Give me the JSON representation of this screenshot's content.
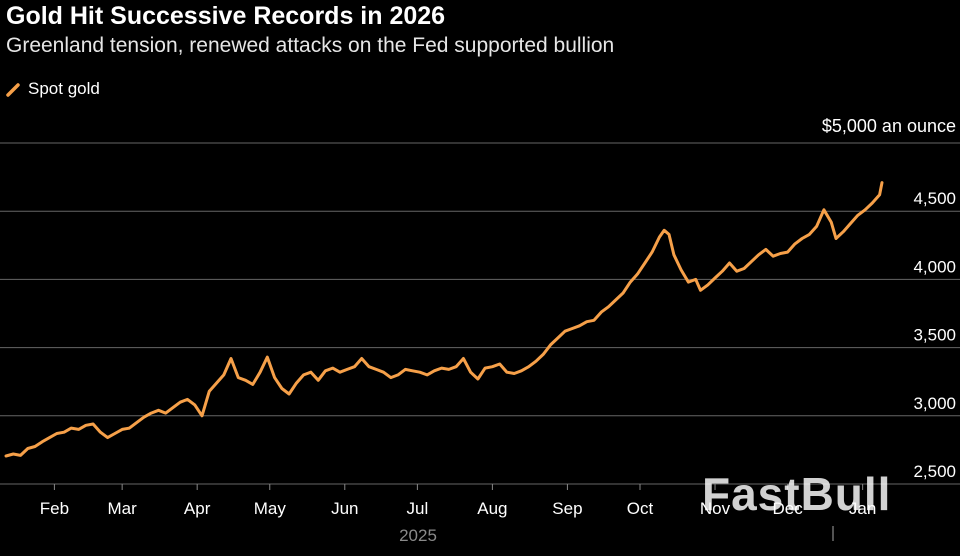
{
  "header": {
    "title": "Gold Hit Successive Records in 2026",
    "subtitle": "Greenland tension, renewed attacks on the Fed supported bullion"
  },
  "legend": {
    "label": "Spot gold"
  },
  "watermark": "FastBull",
  "colors": {
    "series": "#f6a049",
    "grid": "#666666",
    "background": "#000000",
    "text": "#ffffff"
  },
  "chart_data": {
    "type": "line",
    "title": "Gold Hit Successive Records in 2026",
    "subtitle": "Greenland tension, renewed attacks on the Fed supported bullion",
    "ylabel": "$5,000 an ounce",
    "xlabel": "",
    "year_label": "2025",
    "ylim": [
      2500,
      5000
    ],
    "yticks": [
      2500,
      3000,
      3500,
      4000,
      4500
    ],
    "ytick_labels": [
      "2,500",
      "3,000",
      "3,500",
      "4,000",
      "4,500"
    ],
    "xlim": [
      0,
      362
    ],
    "x_ticks": [
      {
        "label": "Feb",
        "x": 20
      },
      {
        "label": "Mar",
        "x": 48
      },
      {
        "label": "Apr",
        "x": 79
      },
      {
        "label": "May",
        "x": 109
      },
      {
        "label": "Jun",
        "x": 140
      },
      {
        "label": "Jul",
        "x": 170
      },
      {
        "label": "Aug",
        "x": 201
      },
      {
        "label": "Sep",
        "x": 232
      },
      {
        "label": "Oct",
        "x": 262
      },
      {
        "label": "Nov",
        "x": 293
      },
      {
        "label": "Dec",
        "x": 323
      },
      {
        "label": "Jan",
        "x": 354
      }
    ],
    "legend_position": "top-left",
    "series": [
      {
        "name": "Spot gold",
        "points": [
          [
            0,
            2705
          ],
          [
            3,
            2720
          ],
          [
            6,
            2710
          ],
          [
            9,
            2760
          ],
          [
            12,
            2775
          ],
          [
            15,
            2810
          ],
          [
            18,
            2840
          ],
          [
            21,
            2870
          ],
          [
            24,
            2880
          ],
          [
            27,
            2910
          ],
          [
            30,
            2900
          ],
          [
            33,
            2930
          ],
          [
            36,
            2940
          ],
          [
            39,
            2880
          ],
          [
            42,
            2840
          ],
          [
            45,
            2870
          ],
          [
            48,
            2900
          ],
          [
            51,
            2910
          ],
          [
            54,
            2950
          ],
          [
            57,
            2990
          ],
          [
            60,
            3020
          ],
          [
            63,
            3040
          ],
          [
            66,
            3020
          ],
          [
            69,
            3060
          ],
          [
            72,
            3100
          ],
          [
            75,
            3120
          ],
          [
            78,
            3080
          ],
          [
            81,
            3000
          ],
          [
            84,
            3180
          ],
          [
            87,
            3240
          ],
          [
            90,
            3300
          ],
          [
            93,
            3420
          ],
          [
            96,
            3280
          ],
          [
            99,
            3260
          ],
          [
            102,
            3230
          ],
          [
            105,
            3320
          ],
          [
            108,
            3430
          ],
          [
            111,
            3280
          ],
          [
            114,
            3200
          ],
          [
            117,
            3160
          ],
          [
            120,
            3240
          ],
          [
            123,
            3300
          ],
          [
            126,
            3320
          ],
          [
            129,
            3260
          ],
          [
            132,
            3330
          ],
          [
            135,
            3350
          ],
          [
            138,
            3320
          ],
          [
            141,
            3340
          ],
          [
            144,
            3360
          ],
          [
            147,
            3420
          ],
          [
            150,
            3360
          ],
          [
            153,
            3340
          ],
          [
            156,
            3320
          ],
          [
            159,
            3280
          ],
          [
            162,
            3300
          ],
          [
            165,
            3340
          ],
          [
            168,
            3330
          ],
          [
            171,
            3320
          ],
          [
            174,
            3300
          ],
          [
            177,
            3330
          ],
          [
            180,
            3350
          ],
          [
            183,
            3340
          ],
          [
            186,
            3360
          ],
          [
            189,
            3420
          ],
          [
            192,
            3320
          ],
          [
            195,
            3270
          ],
          [
            198,
            3350
          ],
          [
            201,
            3360
          ],
          [
            204,
            3380
          ],
          [
            207,
            3320
          ],
          [
            210,
            3310
          ],
          [
            213,
            3330
          ],
          [
            216,
            3360
          ],
          [
            219,
            3400
          ],
          [
            222,
            3450
          ],
          [
            225,
            3520
          ],
          [
            228,
            3570
          ],
          [
            231,
            3620
          ],
          [
            234,
            3640
          ],
          [
            237,
            3660
          ],
          [
            240,
            3690
          ],
          [
            243,
            3700
          ],
          [
            246,
            3760
          ],
          [
            249,
            3800
          ],
          [
            252,
            3850
          ],
          [
            255,
            3900
          ],
          [
            258,
            3980
          ],
          [
            261,
            4040
          ],
          [
            264,
            4120
          ],
          [
            267,
            4200
          ],
          [
            270,
            4310
          ],
          [
            272,
            4360
          ],
          [
            274,
            4330
          ],
          [
            276,
            4180
          ],
          [
            279,
            4070
          ],
          [
            282,
            3980
          ],
          [
            285,
            4000
          ],
          [
            287,
            3920
          ],
          [
            290,
            3960
          ],
          [
            293,
            4010
          ],
          [
            296,
            4060
          ],
          [
            299,
            4120
          ],
          [
            302,
            4060
          ],
          [
            305,
            4080
          ],
          [
            308,
            4130
          ],
          [
            311,
            4180
          ],
          [
            314,
            4220
          ],
          [
            317,
            4170
          ],
          [
            320,
            4190
          ],
          [
            323,
            4200
          ],
          [
            326,
            4260
          ],
          [
            329,
            4300
          ],
          [
            332,
            4330
          ],
          [
            335,
            4390
          ],
          [
            338,
            4510
          ],
          [
            341,
            4420
          ],
          [
            343,
            4300
          ],
          [
            346,
            4350
          ],
          [
            349,
            4410
          ],
          [
            352,
            4470
          ],
          [
            355,
            4510
          ],
          [
            358,
            4560
          ],
          [
            361,
            4620
          ],
          [
            362,
            4710
          ]
        ]
      }
    ]
  }
}
